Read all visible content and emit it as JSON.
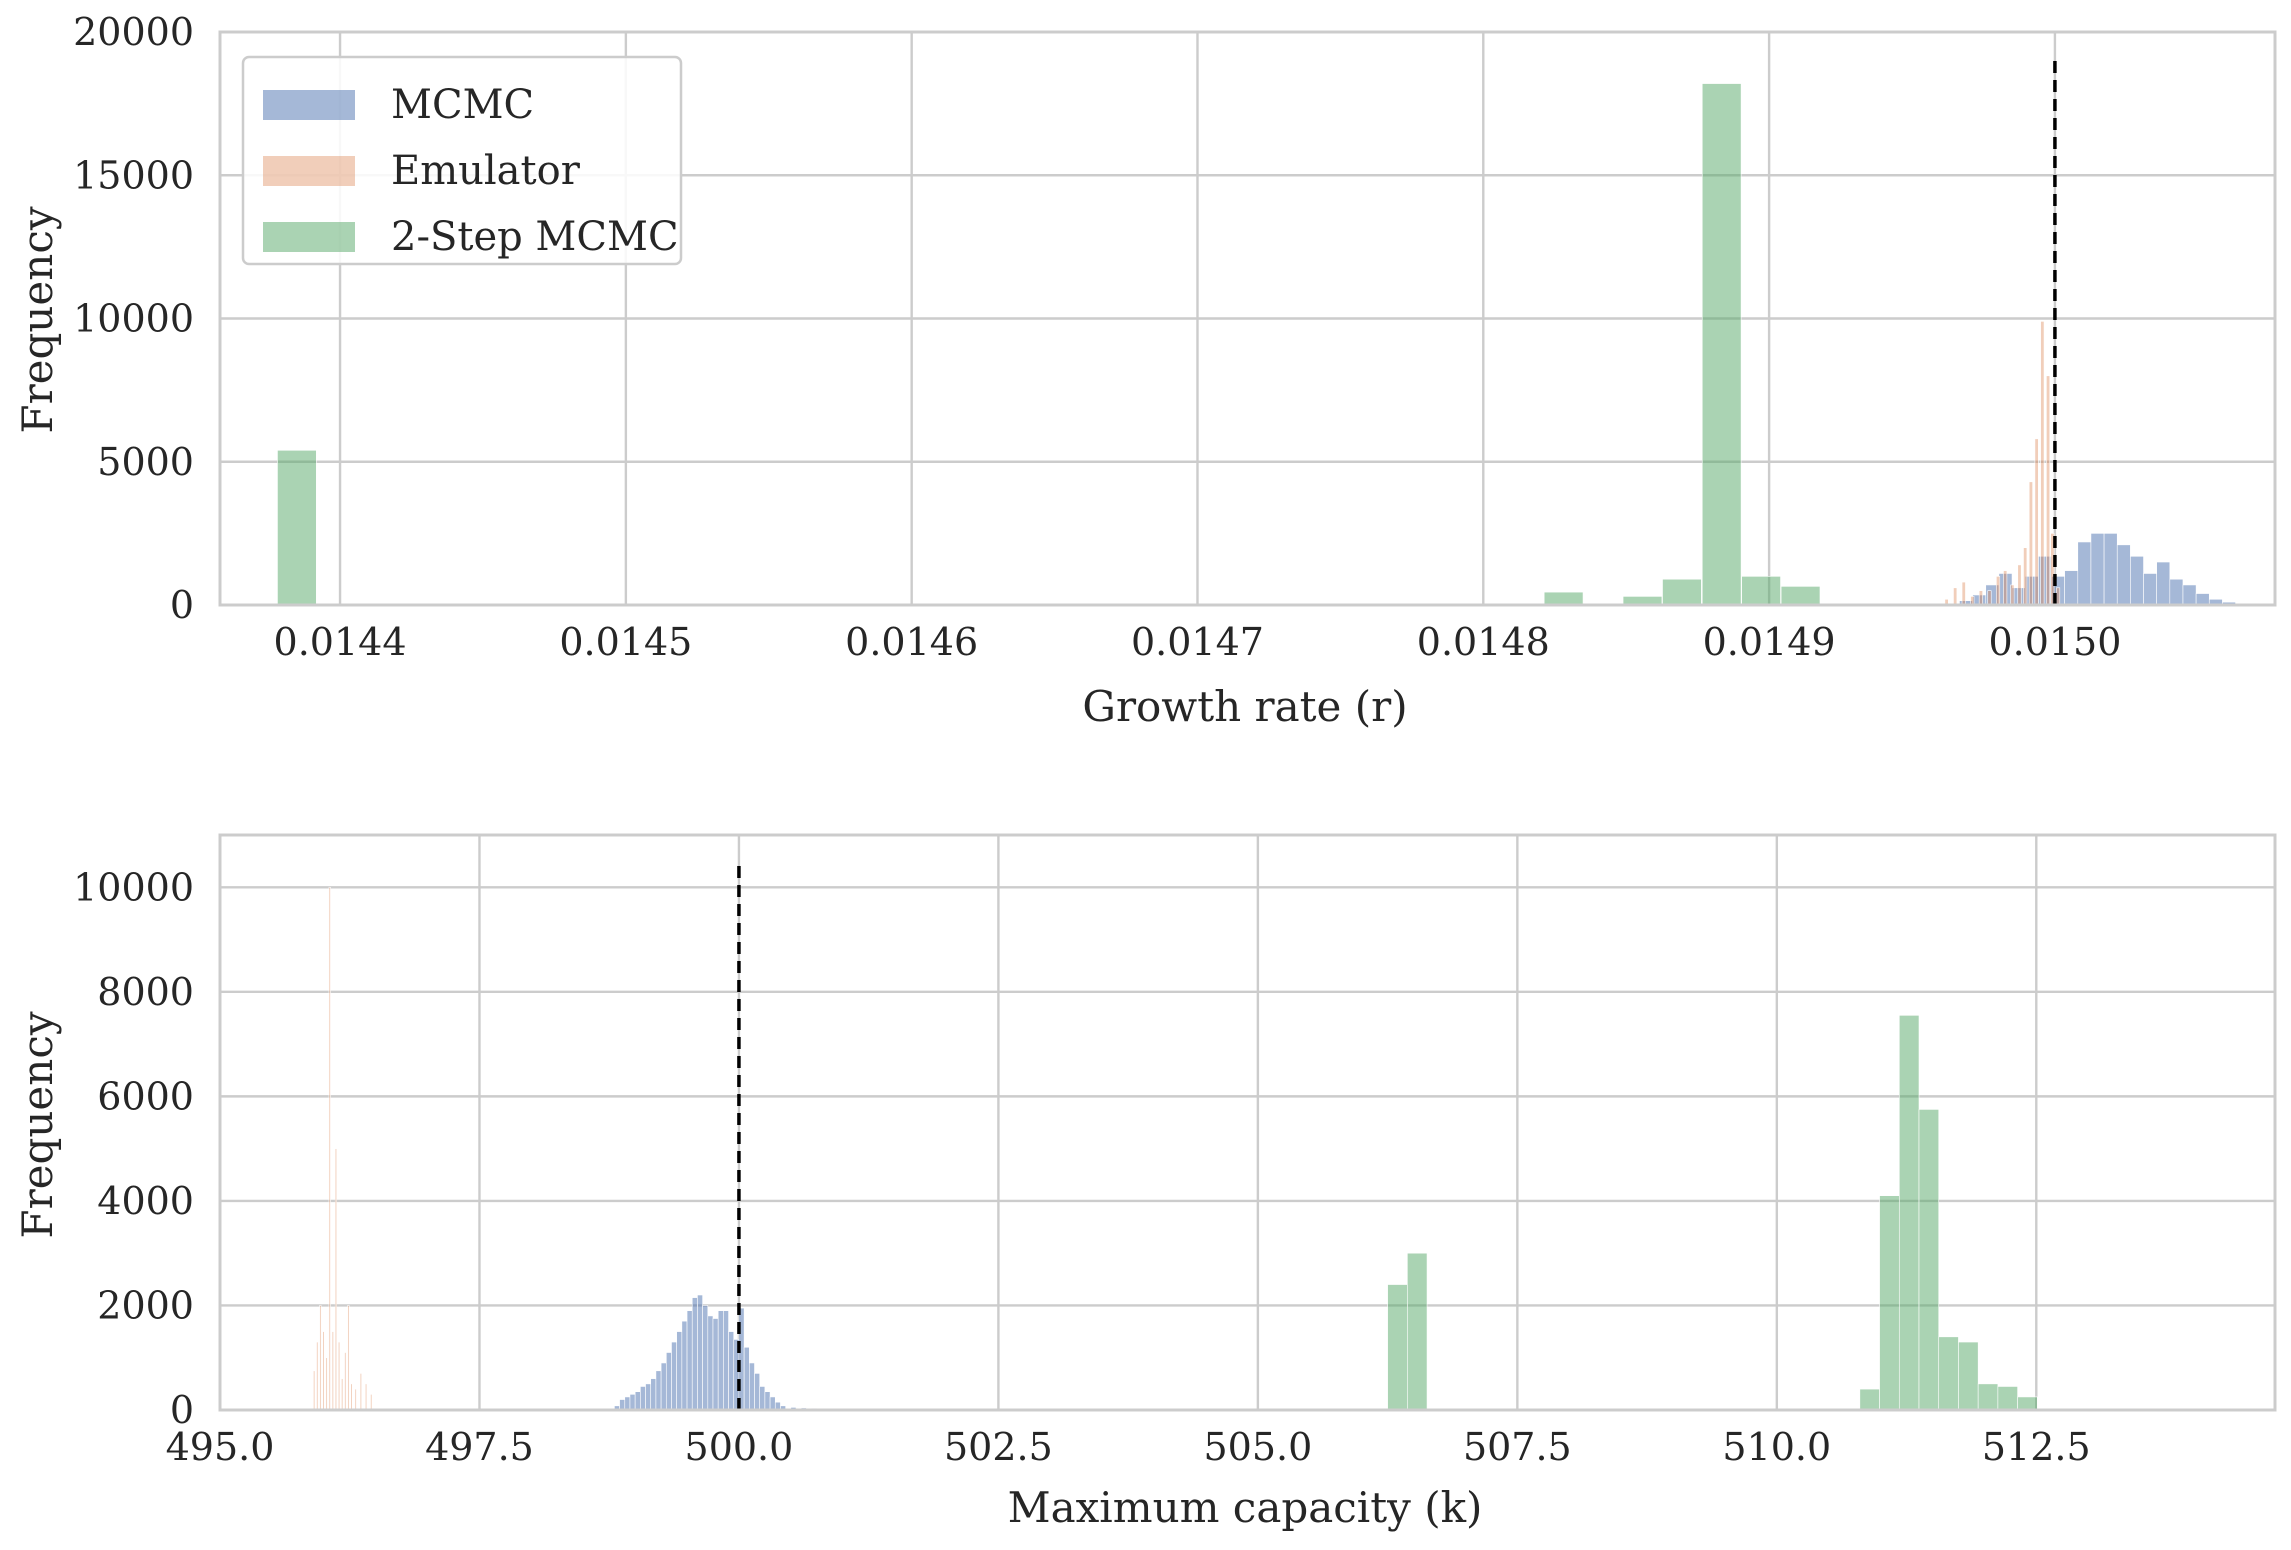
{
  "colors": {
    "MCMC": "#4c72b0",
    "Emulator": "#dd8452",
    "2-Step MCMC": "#55a868",
    "grid": "#cccccc",
    "reference_line": "#000000"
  },
  "chart_data": [
    {
      "type": "histogram",
      "xlabel": "Growth rate (r)",
      "ylabel": "Frequency",
      "xlim": [
        0.014358,
        0.015077
      ],
      "ylim": [
        0,
        20000
      ],
      "xticks": [
        0.0144,
        0.0145,
        0.0146,
        0.0147,
        0.0148,
        0.0149,
        0.015
      ],
      "xtick_labels": [
        "0.0144",
        "0.0145",
        "0.0146",
        "0.0147",
        "0.0148",
        "0.0149",
        "0.0150"
      ],
      "yticks": [
        0,
        5000,
        10000,
        15000,
        20000
      ],
      "ytick_labels": [
        "0",
        "5000",
        "10000",
        "15000",
        "20000"
      ],
      "grid": true,
      "legend": {
        "position": "top-left",
        "entries": [
          "MCMC",
          "Emulator",
          "2-Step MCMC"
        ]
      },
      "reference_line": {
        "x": 0.015,
        "style": "dashed",
        "y_top": 19200
      },
      "series": [
        {
          "name": "MCMC",
          "opacity": 0.5,
          "bin_width": 4.6e-06,
          "bins": [
            {
              "x0": 0.014962,
              "y": 50
            },
            {
              "x0": 0.0149666,
              "y": 150
            },
            {
              "x0": 0.0149712,
              "y": 350
            },
            {
              "x0": 0.0149758,
              "y": 700
            },
            {
              "x0": 0.0149804,
              "y": 1100
            },
            {
              "x0": 0.014985,
              "y": 600
            },
            {
              "x0": 0.0149896,
              "y": 1000
            },
            {
              "x0": 0.0149942,
              "y": 1700
            },
            {
              "x0": 0.0149988,
              "y": 1000
            },
            {
              "x0": 0.0150034,
              "y": 1200
            },
            {
              "x0": 0.015008,
              "y": 2200
            },
            {
              "x0": 0.0150126,
              "y": 2500
            },
            {
              "x0": 0.0150172,
              "y": 2500
            },
            {
              "x0": 0.0150218,
              "y": 2100
            },
            {
              "x0": 0.0150264,
              "y": 1700
            },
            {
              "x0": 0.015031,
              "y": 1100
            },
            {
              "x0": 0.0150356,
              "y": 1500
            },
            {
              "x0": 0.0150402,
              "y": 900
            },
            {
              "x0": 0.0150448,
              "y": 700
            },
            {
              "x0": 0.0150494,
              "y": 400
            },
            {
              "x0": 0.015054,
              "y": 200
            },
            {
              "x0": 0.0150586,
              "y": 100
            }
          ]
        },
        {
          "name": "Emulator",
          "opacity": 0.4,
          "bin_width": 1.2e-06,
          "bins": [
            {
              "x0": 0.0149615,
              "y": 200
            },
            {
              "x0": 0.0149645,
              "y": 600
            },
            {
              "x0": 0.0149675,
              "y": 800
            },
            {
              "x0": 0.0149705,
              "y": 300
            },
            {
              "x0": 0.0149735,
              "y": 500
            },
            {
              "x0": 0.0149765,
              "y": 500
            },
            {
              "x0": 0.0149795,
              "y": 1000
            },
            {
              "x0": 0.014982,
              "y": 1200
            },
            {
              "x0": 0.0149845,
              "y": 700
            },
            {
              "x0": 0.014987,
              "y": 1400
            },
            {
              "x0": 0.014989,
              "y": 2000
            },
            {
              "x0": 0.014991,
              "y": 4300
            },
            {
              "x0": 0.014993,
              "y": 5800
            },
            {
              "x0": 0.014995,
              "y": 9900
            },
            {
              "x0": 0.014997,
              "y": 8000
            },
            {
              "x0": 0.0149985,
              "y": 2500
            },
            {
              "x0": 0.0150005,
              "y": 600
            }
          ]
        },
        {
          "name": "2-Step MCMC",
          "opacity": 0.5,
          "bin_width": 1.36e-05,
          "bins": [
            {
              "x0": 0.0143781,
              "y": 5400
            },
            {
              "x0": 0.0148213,
              "y": 450
            },
            {
              "x0": 0.0148489,
              "y": 300
            },
            {
              "x0": 0.0148627,
              "y": 900
            },
            {
              "x0": 0.0148766,
              "y": 18200
            },
            {
              "x0": 0.0148904,
              "y": 1000
            },
            {
              "x0": 0.0149042,
              "y": 650
            }
          ]
        }
      ]
    },
    {
      "type": "histogram",
      "xlabel": "Maximum capacity (k)",
      "ylabel": "Frequency",
      "xlim": [
        495.0,
        514.8
      ],
      "ylim": [
        0,
        11000
      ],
      "xticks": [
        495.0,
        497.5,
        500.0,
        502.5,
        505.0,
        507.5,
        510.0,
        512.5
      ],
      "xtick_labels": [
        "495.0",
        "497.5",
        "500.0",
        "502.5",
        "505.0",
        "507.5",
        "510.0",
        "512.5"
      ],
      "yticks": [
        0,
        2000,
        4000,
        6000,
        8000,
        10000
      ],
      "ytick_labels": [
        "0",
        "2000",
        "4000",
        "6000",
        "8000",
        "10000"
      ],
      "grid": true,
      "reference_line": {
        "x": 500.0,
        "style": "dashed",
        "y_top": 10500
      },
      "series": [
        {
          "name": "MCMC",
          "opacity": 0.5,
          "bin_width": 0.05,
          "bins": [
            {
              "x0": 498.8,
              "y": 80
            },
            {
              "x0": 498.85,
              "y": 200
            },
            {
              "x0": 498.9,
              "y": 250
            },
            {
              "x0": 498.95,
              "y": 300
            },
            {
              "x0": 499.0,
              "y": 350
            },
            {
              "x0": 499.05,
              "y": 450
            },
            {
              "x0": 499.1,
              "y": 500
            },
            {
              "x0": 499.15,
              "y": 600
            },
            {
              "x0": 499.2,
              "y": 750
            },
            {
              "x0": 499.25,
              "y": 900
            },
            {
              "x0": 499.3,
              "y": 1100
            },
            {
              "x0": 499.35,
              "y": 1300
            },
            {
              "x0": 499.4,
              "y": 1500
            },
            {
              "x0": 499.45,
              "y": 1700
            },
            {
              "x0": 499.5,
              "y": 1900
            },
            {
              "x0": 499.55,
              "y": 2150
            },
            {
              "x0": 499.6,
              "y": 2200
            },
            {
              "x0": 499.65,
              "y": 2000
            },
            {
              "x0": 499.7,
              "y": 1800
            },
            {
              "x0": 499.75,
              "y": 1750
            },
            {
              "x0": 499.8,
              "y": 1900
            },
            {
              "x0": 499.85,
              "y": 1900
            },
            {
              "x0": 499.9,
              "y": 1500
            },
            {
              "x0": 499.95,
              "y": 1350
            },
            {
              "x0": 500.0,
              "y": 1950
            },
            {
              "x0": 500.05,
              "y": 1200
            },
            {
              "x0": 500.1,
              "y": 900
            },
            {
              "x0": 500.15,
              "y": 700
            },
            {
              "x0": 500.2,
              "y": 450
            },
            {
              "x0": 500.25,
              "y": 350
            },
            {
              "x0": 500.3,
              "y": 250
            },
            {
              "x0": 500.35,
              "y": 150
            },
            {
              "x0": 500.4,
              "y": 80
            },
            {
              "x0": 500.5,
              "y": 50
            },
            {
              "x0": 500.6,
              "y": 40
            },
            {
              "x0": 500.7,
              "y": 30
            }
          ]
        },
        {
          "name": "Emulator",
          "opacity": 0.4,
          "bin_width": 0.012,
          "bins": [
            {
              "x0": 495.9,
              "y": 750
            },
            {
              "x0": 495.93,
              "y": 1300
            },
            {
              "x0": 495.96,
              "y": 2000
            },
            {
              "x0": 495.99,
              "y": 1500
            },
            {
              "x0": 496.02,
              "y": 1000
            },
            {
              "x0": 496.05,
              "y": 10000
            },
            {
              "x0": 496.08,
              "y": 1500
            },
            {
              "x0": 496.11,
              "y": 5000
            },
            {
              "x0": 496.14,
              "y": 1300
            },
            {
              "x0": 496.17,
              "y": 600
            },
            {
              "x0": 496.2,
              "y": 1100
            },
            {
              "x0": 496.23,
              "y": 2000
            },
            {
              "x0": 496.26,
              "y": 500
            },
            {
              "x0": 496.3,
              "y": 400
            },
            {
              "x0": 496.35,
              "y": 700
            },
            {
              "x0": 496.4,
              "y": 500
            },
            {
              "x0": 496.45,
              "y": 300
            }
          ]
        },
        {
          "name": "2-Step MCMC",
          "opacity": 0.5,
          "bin_width": 0.19,
          "bins": [
            {
              "x0": 506.25,
              "y": 2400
            },
            {
              "x0": 506.44,
              "y": 3000
            },
            {
              "x0": 510.8,
              "y": 400
            },
            {
              "x0": 510.99,
              "y": 4100
            },
            {
              "x0": 511.18,
              "y": 7550
            },
            {
              "x0": 511.37,
              "y": 5750
            },
            {
              "x0": 511.56,
              "y": 1400
            },
            {
              "x0": 511.75,
              "y": 1300
            },
            {
              "x0": 511.94,
              "y": 500
            },
            {
              "x0": 512.13,
              "y": 450
            },
            {
              "x0": 512.32,
              "y": 250
            }
          ]
        }
      ]
    }
  ]
}
